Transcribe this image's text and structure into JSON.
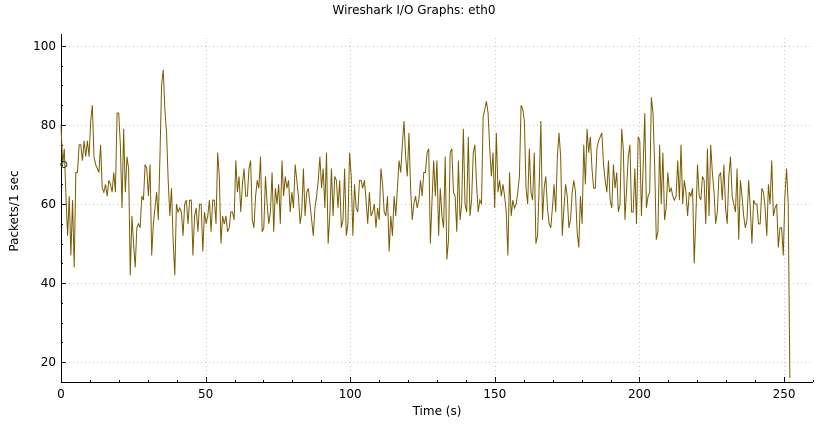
{
  "chart_data": {
    "type": "line",
    "title": "Wireshark I/O Graphs: eth0",
    "xlabel": "Time (s)",
    "ylabel": "Packets/1 sec",
    "xlim": [
      0,
      260
    ],
    "ylim": [
      15,
      102
    ],
    "xticks": [
      0,
      50,
      100,
      150,
      200,
      250
    ],
    "yticks": [
      20,
      40,
      60,
      80,
      100
    ],
    "x_tick_labels": [
      "0",
      "50",
      "100",
      "150",
      "200",
      "250"
    ],
    "y_tick_labels": [
      "20",
      "40",
      "60",
      "80",
      "100"
    ],
    "grid": true,
    "line_color": "#7a5c00",
    "series": [
      {
        "name": "",
        "x_start": 0,
        "x_step": 1,
        "values": [
          80,
          70,
          74,
          62,
          52,
          62,
          47,
          61,
          44,
          68,
          68,
          75,
          75,
          71,
          76,
          72,
          76,
          72,
          81,
          85,
          72,
          70,
          69,
          68,
          75,
          64,
          63,
          65,
          62,
          66,
          65,
          63,
          68,
          63,
          83,
          83,
          75,
          59,
          79,
          63,
          72,
          69,
          42,
          57,
          50,
          44,
          54,
          55,
          54,
          62,
          61,
          70,
          69,
          62,
          70,
          47,
          55,
          59,
          63,
          56,
          72,
          90,
          94,
          84,
          78,
          66,
          57,
          64,
          51,
          42,
          60,
          58,
          59,
          58,
          52,
          60,
          61,
          55,
          61,
          61,
          47,
          57,
          59,
          53,
          60,
          60,
          48,
          58,
          55,
          57,
          61,
          53,
          61,
          61,
          55,
          73,
          67,
          50,
          57,
          55,
          57,
          53,
          54,
          58,
          58,
          56,
          71,
          63,
          67,
          58,
          65,
          69,
          62,
          62,
          69,
          71,
          56,
          54,
          62,
          66,
          64,
          72,
          53,
          54,
          67,
          60,
          55,
          58,
          68,
          53,
          64,
          60,
          65,
          55,
          71,
          62,
          67,
          64,
          66,
          58,
          63,
          59,
          70,
          66,
          62,
          55,
          58,
          69,
          57,
          63,
          64,
          60,
          56,
          52,
          59,
          62,
          66,
          72,
          64,
          69,
          59,
          73,
          50,
          57,
          69,
          57,
          67,
          66,
          59,
          66,
          54,
          56,
          69,
          52,
          55,
          73,
          67,
          52,
          65,
          59,
          58,
          66,
          66,
          64,
          66,
          61,
          55,
          63,
          57,
          58,
          60,
          54,
          59,
          56,
          69,
          65,
          58,
          57,
          62,
          48,
          57,
          52,
          62,
          57,
          64,
          71,
          68,
          75,
          81,
          72,
          67,
          78,
          64,
          56,
          60,
          62,
          59,
          61,
          66,
          62,
          68,
          68,
          73,
          74,
          50,
          61,
          71,
          62,
          71,
          52,
          64,
          57,
          54,
          72,
          46,
          51,
          73,
          74,
          63,
          62,
          53,
          71,
          56,
          60,
          79,
          60,
          58,
          77,
          57,
          61,
          73,
          75,
          65,
          58,
          61,
          60,
          82,
          84,
          86,
          83,
          74,
          67,
          73,
          59,
          78,
          63,
          66,
          62,
          65,
          62,
          58,
          47,
          68,
          57,
          61,
          59,
          60,
          63,
          67,
          85,
          84,
          81,
          64,
          60,
          74,
          63,
          61,
          73,
          50,
          52,
          65,
          81,
          56,
          64,
          67,
          59,
          55,
          54,
          59,
          65,
          58,
          72,
          78,
          72,
          52,
          59,
          65,
          62,
          54,
          56,
          63,
          66,
          63,
          53,
          49,
          62,
          55,
          75,
          65,
          79,
          73,
          77,
          69,
          64,
          64,
          74,
          76,
          77,
          78,
          70,
          66,
          63,
          71,
          61,
          59,
          70,
          64,
          68,
          58,
          60,
          79,
          74,
          56,
          64,
          72,
          75,
          58,
          58,
          69,
          55,
          77,
          76,
          57,
          69,
          83,
          59,
          62,
          63,
          87,
          83,
          70,
          51,
          53,
          75,
          60,
          73,
          56,
          59,
          68,
          63,
          64,
          62,
          61,
          62,
          71,
          61,
          75,
          60,
          66,
          63,
          57,
          63,
          62,
          64,
          45,
          57,
          70,
          62,
          61,
          67,
          66,
          55,
          74,
          57,
          75,
          68,
          63,
          55,
          58,
          67,
          68,
          61,
          70,
          59,
          55,
          67,
          72,
          62,
          60,
          58,
          69,
          51,
          66,
          62,
          57,
          54,
          56,
          66,
          59,
          50,
          61,
          60,
          60,
          55,
          55,
          64,
          63,
          59,
          52,
          65,
          60,
          71,
          57,
          59,
          60,
          49,
          54,
          54,
          47,
          62,
          69,
          60,
          16
        ]
      }
    ],
    "point_values_by_second": [
      80,
      70,
      74,
      62,
      52,
      62,
      47,
      61,
      44,
      68,
      68,
      75,
      75,
      71,
      76,
      72,
      76,
      72,
      81,
      85,
      72,
      70,
      69,
      68,
      75,
      64,
      63,
      65,
      62,
      66,
      65,
      63,
      68,
      63,
      83,
      83,
      75,
      59,
      79,
      63,
      72,
      69,
      42,
      57,
      50,
      44,
      54,
      55,
      54,
      62,
      61,
      70,
      69,
      62,
      70,
      47,
      55,
      59,
      63,
      56,
      72,
      90,
      94,
      84,
      78,
      66,
      57,
      64,
      51,
      42,
      60,
      58,
      59,
      58,
      52,
      60,
      61,
      55,
      61,
      61,
      47,
      57,
      59,
      53,
      60,
      60,
      48,
      58,
      55,
      57,
      61,
      53,
      61,
      61,
      55,
      73,
      67,
      50,
      57,
      55,
      57,
      53,
      54,
      58,
      58,
      56,
      71,
      63,
      67,
      58,
      65,
      69,
      62,
      62,
      69,
      71,
      56,
      54,
      62,
      66,
      64,
      72,
      53,
      54,
      67,
      60,
      55,
      58,
      68,
      53,
      64,
      60,
      65,
      55,
      71,
      62,
      67,
      64,
      66,
      58,
      63,
      59,
      70,
      66,
      62,
      55,
      58,
      69,
      57,
      63,
      64,
      60,
      56,
      52,
      59,
      62,
      66,
      72,
      64,
      69,
      59,
      73,
      50,
      57,
      69,
      57,
      67,
      66,
      59,
      66,
      54,
      56,
      69,
      52,
      55,
      73,
      67,
      52,
      65,
      59,
      58,
      66,
      66,
      64,
      66,
      61,
      55,
      63,
      57,
      58,
      60,
      54,
      59,
      56,
      69,
      65,
      58,
      57,
      62,
      48,
      57,
      52,
      62,
      57,
      64,
      71,
      68,
      75,
      81,
      72,
      67,
      78,
      64,
      56,
      60,
      62,
      59,
      61,
      66,
      62,
      68,
      68,
      73,
      74,
      50,
      61,
      71,
      62,
      71,
      52,
      64,
      57,
      54,
      72,
      46,
      51,
      73,
      74,
      63,
      62,
      53,
      71,
      56,
      60,
      79,
      60,
      58,
      77,
      57,
      61,
      73,
      75,
      65,
      58,
      61,
      60,
      82,
      84,
      86,
      83,
      74,
      67,
      73,
      59,
      78,
      63,
      66,
      62,
      65,
      62,
      58,
      47,
      68,
      57,
      61,
      59,
      60,
      63,
      67,
      85,
      84,
      81,
      64,
      60,
      74,
      63,
      61,
      73,
      50,
      52,
      65,
      81,
      56,
      64,
      67,
      59,
      55,
      54,
      59,
      65,
      58,
      72,
      78,
      72,
      52,
      59,
      65,
      62,
      54,
      56,
      63,
      66,
      63,
      53,
      49,
      62,
      55,
      75,
      65,
      79,
      73,
      77,
      69,
      64,
      64,
      74,
      76,
      77,
      78,
      70,
      66,
      63,
      71,
      61,
      59,
      70,
      64,
      68,
      58,
      60,
      79,
      74,
      56,
      64,
      72,
      75,
      58,
      58,
      69,
      55,
      77,
      76,
      57,
      69,
      83,
      59,
      62,
      63,
      87,
      83,
      70,
      51,
      53,
      75,
      60,
      73,
      56,
      59,
      68,
      63,
      64,
      62,
      61,
      62,
      71,
      61,
      75,
      60,
      66,
      63,
      57,
      63,
      62,
      64,
      45,
      57,
      70,
      62,
      61,
      67,
      66,
      55,
      74,
      57,
      75,
      68,
      63,
      55,
      58,
      67,
      68,
      61,
      70,
      59,
      55,
      67,
      72,
      62,
      60,
      58,
      69,
      51,
      66,
      62,
      57,
      54,
      56,
      66,
      59,
      50,
      61,
      60,
      60,
      55,
      55,
      64,
      63,
      59,
      52,
      65,
      60,
      71,
      57,
      59,
      60,
      49,
      54,
      54,
      47,
      62,
      69,
      60,
      16
    ],
    "marker": {
      "x": 1,
      "y": 70
    }
  }
}
